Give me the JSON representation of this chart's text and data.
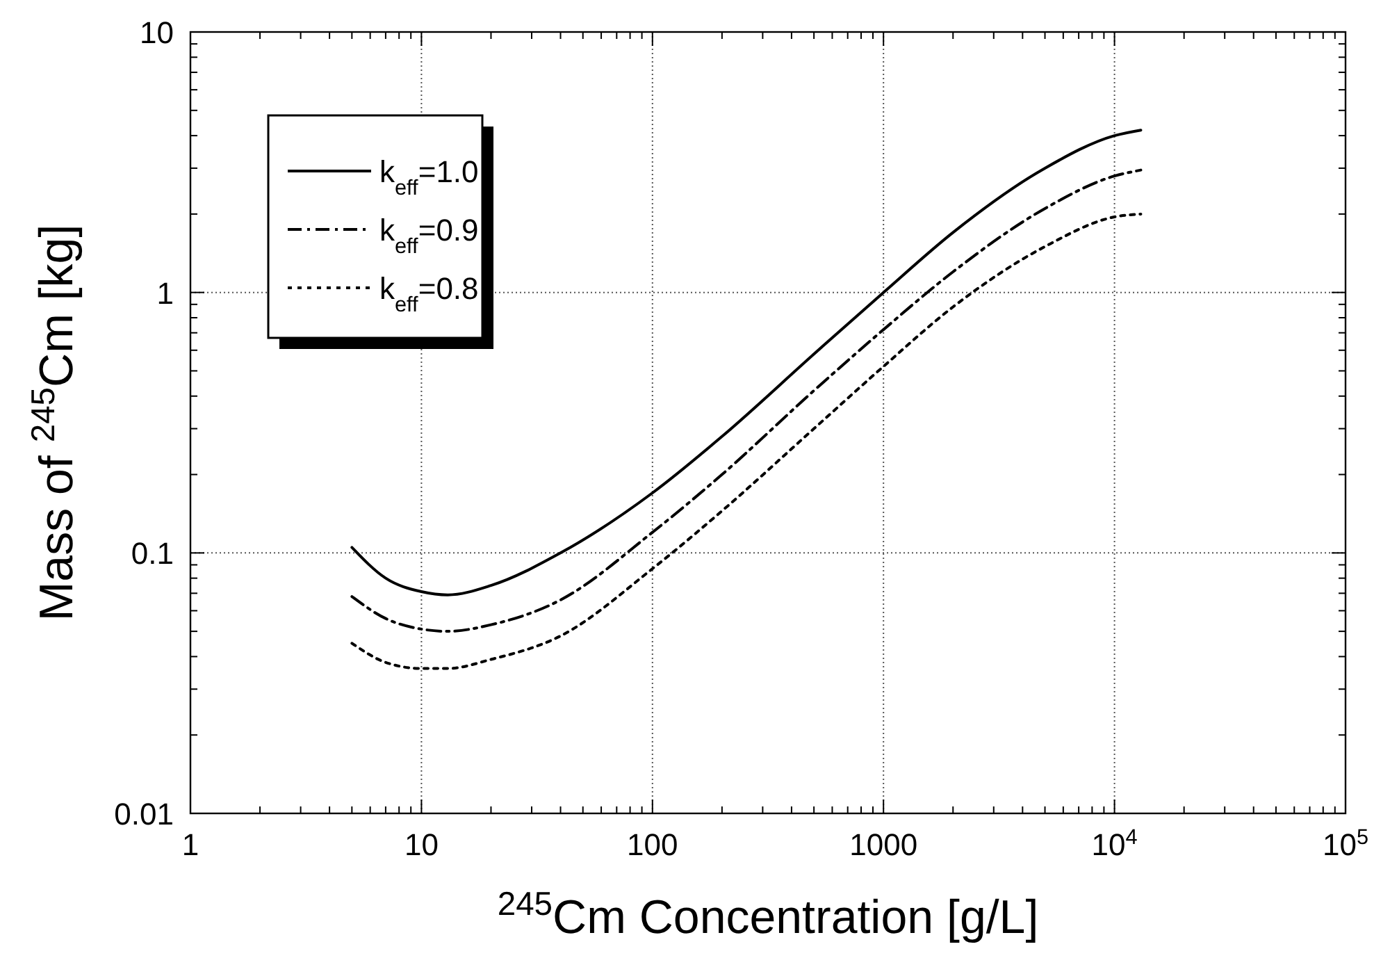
{
  "chart_data": {
    "type": "line",
    "xlabel": "$^{245}$Cm Concentration [g/L]",
    "ylabel": "Mass of $^{245}$Cm [kg]",
    "log": "xy",
    "grid": true,
    "legend": "top left",
    "marker": "none",
    "xlim": [
      1,
      100000
    ],
    "ylim": [
      0.01,
      10
    ],
    "xticks": [
      1,
      {
        "value": 2,
        "label": null
      },
      {
        "value": 3,
        "label": null
      },
      {
        "value": 4,
        "label": null
      },
      {
        "value": 5,
        "label": null
      },
      {
        "value": 6,
        "label": null
      },
      {
        "value": 7,
        "label": null
      },
      {
        "value": 8,
        "label": null
      },
      {
        "value": 9,
        "label": null
      },
      10,
      {
        "value": 20,
        "label": null
      },
      {
        "value": 30,
        "label": null
      },
      {
        "value": 40,
        "label": null
      },
      {
        "value": 50,
        "label": null
      },
      {
        "value": 60,
        "label": null
      },
      {
        "value": 70,
        "label": null
      },
      {
        "value": 80,
        "label": null
      },
      {
        "value": 90,
        "label": null
      },
      100,
      {
        "value": 200,
        "label": null
      },
      {
        "value": 300,
        "label": null
      },
      {
        "value": 400,
        "label": null
      },
      {
        "value": 500,
        "label": null
      },
      {
        "value": 600,
        "label": null
      },
      {
        "value": 700,
        "label": null
      },
      {
        "value": 800,
        "label": null
      },
      {
        "value": 900,
        "label": null
      },
      1000,
      {
        "value": 2000,
        "label": null
      },
      {
        "value": 3000,
        "label": null
      },
      {
        "value": 4000,
        "label": null
      },
      {
        "value": 5000,
        "label": null
      },
      {
        "value": 6000,
        "label": null
      },
      {
        "value": 7000,
        "label": null
      },
      {
        "value": 8000,
        "label": null
      },
      {
        "value": 9000,
        "label": null
      },
      {
        "value": 10000,
        "label": "10$^{4}$"
      },
      {
        "value": 20000,
        "label": null
      },
      {
        "value": 30000,
        "label": null
      },
      {
        "value": 40000,
        "label": null
      },
      {
        "value": 50000,
        "label": null
      },
      {
        "value": 60000,
        "label": null
      },
      {
        "value": 70000,
        "label": null
      },
      {
        "value": 80000,
        "label": null
      },
      {
        "value": 90000,
        "label": null
      },
      {
        "value": 100000,
        "label": "10$^{5}$"
      }
    ],
    "yticks": [
      0.01,
      {
        "value": 0.02,
        "label": null
      },
      {
        "value": 0.03,
        "label": null
      },
      {
        "value": 0.04,
        "label": null
      },
      {
        "value": 0.05,
        "label": null
      },
      {
        "value": 0.06,
        "label": null
      },
      {
        "value": 0.07,
        "label": null
      },
      {
        "value": 0.08,
        "label": null
      },
      {
        "value": 0.09,
        "label": null
      },
      0.1,
      {
        "value": 0.2,
        "label": null
      },
      {
        "value": 0.3,
        "label": null
      },
      {
        "value": 0.4,
        "label": null
      },
      {
        "value": 0.5,
        "label": null
      },
      {
        "value": 0.6,
        "label": null
      },
      {
        "value": 0.7,
        "label": null
      },
      {
        "value": 0.8,
        "label": null
      },
      {
        "value": 0.9,
        "label": null
      },
      1,
      {
        "value": 2,
        "label": null
      },
      {
        "value": 3,
        "label": null
      },
      {
        "value": 4,
        "label": null
      },
      {
        "value": 5,
        "label": null
      },
      {
        "value": 6,
        "label": null
      },
      {
        "value": 7,
        "label": null
      },
      {
        "value": 8,
        "label": null
      },
      {
        "value": 9,
        "label": null
      },
      10
    ],
    "x": [
      5,
      7,
      10,
      13,
      20,
      40,
      100,
      200,
      500,
      1000,
      2000,
      5000,
      10000,
      13000
    ],
    "series": [
      {
        "name": "k$_{eff}$=1.0",
        "color": "#000000",
        "line_style": "solid",
        "values": [
          0.105,
          0.08,
          0.071,
          0.069,
          0.075,
          0.1,
          0.17,
          0.28,
          0.58,
          1.0,
          1.7,
          3.0,
          4.0,
          4.2
        ]
      },
      {
        "name": "k$_{eff}$=0.9",
        "color": "#000000",
        "line_style": "dashed",
        "values": [
          0.068,
          0.056,
          0.051,
          0.05,
          0.053,
          0.066,
          0.12,
          0.2,
          0.42,
          0.72,
          1.2,
          2.1,
          2.8,
          2.95
        ]
      },
      {
        "name": "k$_{eff}$=0.8",
        "color": "#000000",
        "line_style": "dotted",
        "values": [
          0.045,
          0.038,
          0.036,
          0.036,
          0.039,
          0.048,
          0.087,
          0.145,
          0.3,
          0.52,
          0.88,
          1.5,
          1.95,
          2.0
        ]
      }
    ]
  }
}
